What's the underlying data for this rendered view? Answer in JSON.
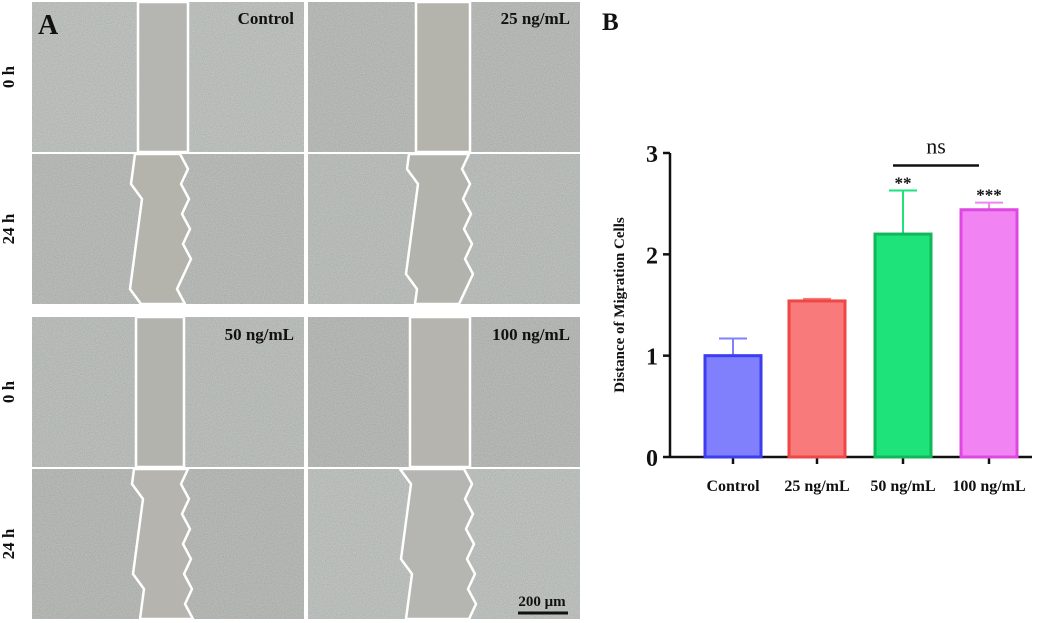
{
  "panel_a": {
    "label": "A",
    "conditions": [
      "Control",
      "25 ng/mL",
      "50 ng/mL",
      "100 ng/mL"
    ],
    "time_labels": [
      "0 h",
      "24 h"
    ],
    "scale_bar": "200 μm"
  },
  "chart_data": {
    "panel_label": "B",
    "type": "bar",
    "categories": [
      "Control",
      "25 ng/mL",
      "50 ng/mL",
      "100 ng/mL"
    ],
    "values": [
      1.0,
      1.54,
      2.2,
      2.44
    ],
    "error_upper": [
      0.17,
      0.02,
      0.43,
      0.07
    ],
    "significance": [
      "",
      "",
      "**",
      "***"
    ],
    "comparison": {
      "between": [
        "50 ng/mL",
        "100 ng/mL"
      ],
      "label": "ns"
    },
    "ylabel": "Distance of Migration Cells",
    "ylim": [
      0,
      3
    ],
    "yticks": [
      0,
      1,
      2,
      3
    ],
    "colors": {
      "fill": [
        "#8080fc",
        "#f97a7a",
        "#1ee27a",
        "#f184f2"
      ],
      "stroke": [
        "#3c3cf0",
        "#ef4646",
        "#10b85a",
        "#dd48e0"
      ]
    },
    "grid": false
  }
}
